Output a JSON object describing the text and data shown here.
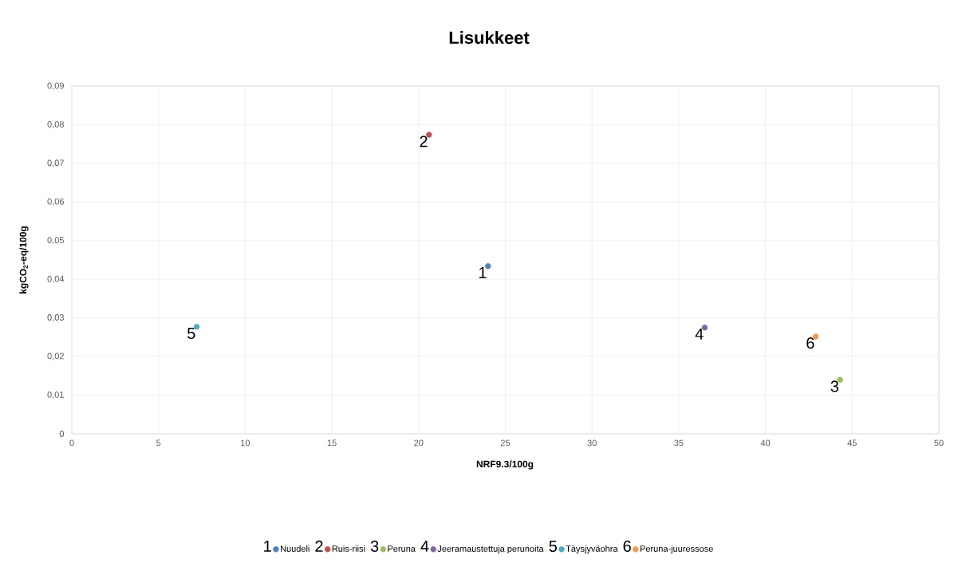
{
  "chart_data": {
    "type": "scatter",
    "title": "Lisukkeet",
    "xlabel": "NRF9.3/100g",
    "ylabel": "kgCO$_{2}$-eq/100g",
    "series": [
      {
        "name": "Nuudeli",
        "color": "#4f81bd",
        "x": [
          24.0
        ],
        "values": [
          0.0434
        ]
      },
      {
        "name": "Ruis-riisi",
        "color": "#c0504d",
        "x": [
          20.6
        ],
        "values": [
          0.0774
        ]
      },
      {
        "name": "Peruna",
        "color": "#9bbb59",
        "x": [
          44.3
        ],
        "values": [
          0.014
        ]
      },
      {
        "name": "Jeeramaustettuja perunoita",
        "color": "#8064a2",
        "x": [
          36.5
        ],
        "values": [
          0.0275
        ]
      },
      {
        "name": "Täysjyväohra",
        "color": "#4bacc6",
        "x": [
          7.2
        ],
        "values": [
          0.0277
        ]
      },
      {
        "name": "Peruna-juuressose",
        "color": "#f79646",
        "x": [
          42.9
        ],
        "values": [
          0.0252
        ]
      }
    ],
    "annotations": [
      {
        "text": "1",
        "x": 24.0,
        "y": 0.0434
      },
      {
        "text": "2",
        "x": 20.6,
        "y": 0.0774
      },
      {
        "text": "3",
        "x": 44.3,
        "y": 0.014
      },
      {
        "text": "4",
        "x": 36.5,
        "y": 0.0275
      },
      {
        "text": "5",
        "x": 7.2,
        "y": 0.0277
      },
      {
        "text": "6",
        "x": 42.9,
        "y": 0.0252
      }
    ],
    "xlim": [
      0,
      50
    ],
    "xticks": [
      0,
      5,
      10,
      15,
      20,
      25,
      30,
      35,
      40,
      45,
      50
    ],
    "ylim": [
      0,
      0.09
    ],
    "yticks": [
      {
        "value": 0,
        "label": "0"
      },
      {
        "value": 0.01,
        "label": "0,01"
      },
      {
        "value": 0.02,
        "label": "0,02"
      },
      {
        "value": 0.03,
        "label": "0,03"
      },
      {
        "value": 0.04,
        "label": "0,04"
      },
      {
        "value": 0.05,
        "label": "0,05"
      },
      {
        "value": 0.06,
        "label": "0,06"
      },
      {
        "value": 0.07,
        "label": "0,07"
      },
      {
        "value": 0.08,
        "label": "0,08"
      },
      {
        "value": 0.09,
        "label": "0,09"
      }
    ],
    "grid": true,
    "legend": "bottom",
    "marker": "circle"
  }
}
